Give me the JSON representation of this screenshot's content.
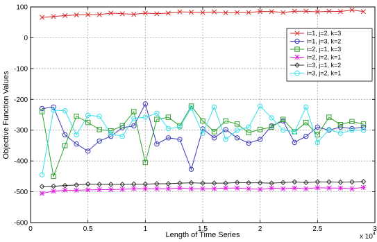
{
  "chart_data": {
    "type": "line",
    "title": "",
    "xlabel": "Length of Time Series",
    "ylabel": "Objective Function Values",
    "x_scale_label": "x 10",
    "x_scale_exponent": "4",
    "xlim": [
      0,
      3
    ],
    "ylim": [
      -600,
      100
    ],
    "xticks": [
      0,
      0.5,
      1,
      1.5,
      2,
      2.5,
      3
    ],
    "xtick_labels": [
      "0",
      "0.5",
      "1",
      "1.5",
      "2",
      "2.5",
      "3"
    ],
    "yticks": [
      100,
      0,
      -100,
      -200,
      -300,
      -400,
      -500,
      -600
    ],
    "ytick_labels": [
      "100",
      "0",
      "-100",
      "-200",
      "-300",
      "-400",
      "-500",
      "-600"
    ],
    "grid": true,
    "legend_position": "top-right",
    "x": [
      0.1,
      0.2,
      0.3,
      0.4,
      0.5,
      0.6,
      0.7,
      0.8,
      0.9,
      1.0,
      1.1,
      1.2,
      1.3,
      1.4,
      1.5,
      1.6,
      1.7,
      1.8,
      1.9,
      2.0,
      2.1,
      2.2,
      2.3,
      2.4,
      2.5,
      2.6,
      2.7,
      2.8,
      2.9
    ],
    "series": [
      {
        "name": "i=1, j=2, k=3",
        "color": "#d62728",
        "marker": "x",
        "values": [
          66,
          69,
          72,
          74,
          75,
          75,
          80,
          78,
          76,
          80,
          78,
          80,
          84,
          83,
          82,
          84,
          81,
          82,
          82,
          85,
          85,
          82,
          86,
          86,
          84,
          86,
          85,
          90,
          85
        ]
      },
      {
        "name": "i=1, j=3, k=2",
        "color": "#3a3ab8",
        "marker": "circle",
        "values": [
          -230,
          -225,
          -315,
          -345,
          -368,
          -335,
          -320,
          -292,
          -286,
          -215,
          -345,
          -325,
          -330,
          -427,
          -296,
          -325,
          -298,
          -325,
          -342,
          -330,
          -286,
          -270,
          -340,
          -320,
          -290,
          -300,
          -290,
          -295,
          -290
        ]
      },
      {
        "name": "i=2, j=1, k=3",
        "color": "#2ca02c",
        "marker": "square",
        "values": [
          -240,
          -450,
          -350,
          -255,
          -275,
          -298,
          -302,
          -286,
          -240,
          -405,
          -265,
          -258,
          -286,
          -222,
          -270,
          -305,
          -270,
          -280,
          -308,
          -298,
          -290,
          -265,
          -305,
          -275,
          -315,
          -258,
          -282,
          -272,
          -280
        ]
      },
      {
        "name": "i=2, j=2, k=1",
        "color": "#e020e0",
        "marker": "star",
        "values": [
          -505,
          -498,
          -495,
          -495,
          -494,
          -493,
          -493,
          -492,
          -490,
          -490,
          -490,
          -490,
          -488,
          -490,
          -490,
          -490,
          -488,
          -488,
          -490,
          -492,
          -488,
          -490,
          -488,
          -490,
          -487,
          -488,
          -488,
          -490,
          -486
        ]
      },
      {
        "name": "i=3, j=1, k=2",
        "color": "#333333",
        "marker": "diamond",
        "values": [
          -483,
          -482,
          -480,
          -478,
          -475,
          -476,
          -476,
          -476,
          -475,
          -475,
          -474,
          -474,
          -472,
          -471,
          -472,
          -472,
          -472,
          -470,
          -471,
          -471,
          -472,
          -470,
          -468,
          -470,
          -468,
          -468,
          -469,
          -468,
          -467
        ]
      },
      {
        "name": "i=3, j=2, k=1",
        "color": "#35e0e8",
        "marker": "circle",
        "values": [
          -445,
          -235,
          -237,
          -315,
          -252,
          -255,
          -312,
          -320,
          -262,
          -258,
          -245,
          -295,
          -290,
          -228,
          -310,
          -225,
          -330,
          -300,
          -290,
          -222,
          -260,
          -300,
          -305,
          -225,
          -340,
          -298,
          -310,
          -300,
          -300
        ]
      }
    ]
  }
}
